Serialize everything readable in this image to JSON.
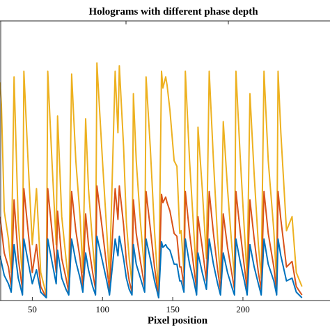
{
  "chart_data": {
    "type": "line",
    "title": "Holograms with different phase depth",
    "xlabel": "Pixel position",
    "ylabel": "",
    "xlim": [
      27,
      262
    ],
    "ylim": [
      0,
      1
    ],
    "x_ticks": [
      "50",
      "100",
      "150",
      "200"
    ],
    "grid": false,
    "legend": "none",
    "series": [
      {
        "color": "#EDB120",
        "points": [
          [
            27,
            0.78
          ],
          [
            28,
            0.7
          ],
          [
            30,
            0.32
          ],
          [
            33,
            0.22
          ],
          [
            35,
            0.1
          ],
          [
            37,
            0.8
          ],
          [
            40,
            0.28
          ],
          [
            43,
            0.08
          ],
          [
            44,
            0.82
          ],
          [
            47,
            0.5
          ],
          [
            50,
            0.2
          ],
          [
            53,
            0.4
          ],
          [
            56,
            0.1
          ],
          [
            60,
            0.02
          ],
          [
            61,
            0.82
          ],
          [
            64,
            0.5
          ],
          [
            67,
            0.2
          ],
          [
            68,
            0.66
          ],
          [
            71,
            0.3
          ],
          [
            74,
            0.15
          ],
          [
            76,
            0.06
          ],
          [
            78,
            0.81
          ],
          [
            81,
            0.5
          ],
          [
            84,
            0.3
          ],
          [
            86,
            0.1
          ],
          [
            88,
            0.65
          ],
          [
            90,
            0.4
          ],
          [
            93,
            0.2
          ],
          [
            95,
            0.08
          ],
          [
            96,
            0.85
          ],
          [
            100,
            0.5
          ],
          [
            103,
            0.25
          ],
          [
            105,
            0.08
          ],
          [
            109,
            0.82
          ],
          [
            111,
            0.6
          ],
          [
            112,
            0.84
          ],
          [
            115,
            0.55
          ],
          [
            117,
            0.28
          ],
          [
            119,
            0.15
          ],
          [
            121,
            0.06
          ],
          [
            122,
            0.74
          ],
          [
            124,
            0.5
          ],
          [
            127,
            0.28
          ],
          [
            130,
            0.1
          ],
          [
            131,
            0.8
          ],
          [
            134,
            0.55
          ],
          [
            137,
            0.25
          ],
          [
            140,
            0.02
          ],
          [
            142,
            0.82
          ],
          [
            143,
            0.76
          ],
          [
            145,
            0.8
          ],
          [
            146,
            0.77
          ],
          [
            148,
            0.68
          ],
          [
            151,
            0.5
          ],
          [
            153,
            0.48
          ],
          [
            155,
            0.24
          ],
          [
            156,
            0.25
          ],
          [
            158,
            0.1
          ],
          [
            159,
            0.82
          ],
          [
            162,
            0.5
          ],
          [
            165,
            0.25
          ],
          [
            167,
            0.08
          ],
          [
            168,
            0.62
          ],
          [
            171,
            0.4
          ],
          [
            174,
            0.15
          ],
          [
            176,
            0.82
          ],
          [
            179,
            0.5
          ],
          [
            182,
            0.22
          ],
          [
            184,
            0.08
          ],
          [
            186,
            0.64
          ],
          [
            189,
            0.4
          ],
          [
            192,
            0.2
          ],
          [
            194,
            0.08
          ],
          [
            195,
            0.82
          ],
          [
            198,
            0.52
          ],
          [
            201,
            0.25
          ],
          [
            203,
            0.08
          ],
          [
            205,
            0.74
          ],
          [
            208,
            0.45
          ],
          [
            211,
            0.2
          ],
          [
            213,
            0.08
          ],
          [
            215,
            0.82
          ],
          [
            218,
            0.5
          ],
          [
            222,
            0.25
          ],
          [
            224,
            0.06
          ],
          [
            225,
            0.82
          ],
          [
            227,
            0.6
          ],
          [
            231,
            0.25
          ],
          [
            235,
            0.3
          ],
          [
            238,
            0.1
          ],
          [
            242,
            0.05
          ]
        ]
      },
      {
        "color": "#D95319",
        "points": [
          [
            27,
            0.3
          ],
          [
            30,
            0.17
          ],
          [
            33,
            0.12
          ],
          [
            35,
            0.05
          ],
          [
            37,
            0.36
          ],
          [
            40,
            0.15
          ],
          [
            43,
            0.04
          ],
          [
            44,
            0.4
          ],
          [
            47,
            0.25
          ],
          [
            50,
            0.1
          ],
          [
            53,
            0.2
          ],
          [
            56,
            0.05
          ],
          [
            60,
            0.01
          ],
          [
            61,
            0.4
          ],
          [
            64,
            0.25
          ],
          [
            67,
            0.1
          ],
          [
            68,
            0.32
          ],
          [
            71,
            0.15
          ],
          [
            74,
            0.08
          ],
          [
            76,
            0.03
          ],
          [
            78,
            0.39
          ],
          [
            81,
            0.25
          ],
          [
            84,
            0.15
          ],
          [
            86,
            0.05
          ],
          [
            88,
            0.31
          ],
          [
            90,
            0.2
          ],
          [
            93,
            0.1
          ],
          [
            95,
            0.04
          ],
          [
            96,
            0.41
          ],
          [
            100,
            0.25
          ],
          [
            103,
            0.12
          ],
          [
            105,
            0.04
          ],
          [
            109,
            0.4
          ],
          [
            111,
            0.29
          ],
          [
            112,
            0.41
          ],
          [
            115,
            0.27
          ],
          [
            117,
            0.14
          ],
          [
            119,
            0.07
          ],
          [
            121,
            0.03
          ],
          [
            122,
            0.36
          ],
          [
            124,
            0.24
          ],
          [
            127,
            0.14
          ],
          [
            130,
            0.05
          ],
          [
            131,
            0.39
          ],
          [
            134,
            0.26
          ],
          [
            137,
            0.12
          ],
          [
            140,
            0.01
          ],
          [
            142,
            0.38
          ],
          [
            143,
            0.35
          ],
          [
            145,
            0.37
          ],
          [
            146,
            0.35
          ],
          [
            148,
            0.32
          ],
          [
            151,
            0.24
          ],
          [
            153,
            0.23
          ],
          [
            155,
            0.12
          ],
          [
            156,
            0.12
          ],
          [
            158,
            0.05
          ],
          [
            159,
            0.39
          ],
          [
            162,
            0.24
          ],
          [
            165,
            0.12
          ],
          [
            167,
            0.04
          ],
          [
            168,
            0.3
          ],
          [
            171,
            0.19
          ],
          [
            174,
            0.07
          ],
          [
            176,
            0.39
          ],
          [
            179,
            0.24
          ],
          [
            182,
            0.11
          ],
          [
            184,
            0.04
          ],
          [
            186,
            0.31
          ],
          [
            189,
            0.19
          ],
          [
            192,
            0.1
          ],
          [
            194,
            0.04
          ],
          [
            195,
            0.39
          ],
          [
            198,
            0.25
          ],
          [
            201,
            0.12
          ],
          [
            203,
            0.04
          ],
          [
            205,
            0.36
          ],
          [
            208,
            0.22
          ],
          [
            211,
            0.1
          ],
          [
            213,
            0.04
          ],
          [
            215,
            0.39
          ],
          [
            218,
            0.24
          ],
          [
            222,
            0.12
          ],
          [
            224,
            0.03
          ],
          [
            225,
            0.39
          ],
          [
            227,
            0.29
          ],
          [
            231,
            0.12
          ],
          [
            235,
            0.14
          ],
          [
            238,
            0.05
          ],
          [
            242,
            0.02
          ]
        ]
      },
      {
        "color": "#0072BD",
        "points": [
          [
            27,
            0.16
          ],
          [
            30,
            0.09
          ],
          [
            33,
            0.06
          ],
          [
            35,
            0.03
          ],
          [
            37,
            0.2
          ],
          [
            40,
            0.08
          ],
          [
            43,
            0.02
          ],
          [
            44,
            0.22
          ],
          [
            47,
            0.14
          ],
          [
            50,
            0.06
          ],
          [
            53,
            0.11
          ],
          [
            56,
            0.03
          ],
          [
            60,
            0.01
          ],
          [
            61,
            0.22
          ],
          [
            64,
            0.14
          ],
          [
            67,
            0.06
          ],
          [
            68,
            0.18
          ],
          [
            71,
            0.08
          ],
          [
            74,
            0.04
          ],
          [
            76,
            0.02
          ],
          [
            78,
            0.22
          ],
          [
            81,
            0.14
          ],
          [
            84,
            0.08
          ],
          [
            86,
            0.03
          ],
          [
            88,
            0.17
          ],
          [
            90,
            0.11
          ],
          [
            93,
            0.05
          ],
          [
            95,
            0.02
          ],
          [
            96,
            0.23
          ],
          [
            100,
            0.14
          ],
          [
            103,
            0.07
          ],
          [
            105,
            0.02
          ],
          [
            109,
            0.22
          ],
          [
            111,
            0.16
          ],
          [
            112,
            0.23
          ],
          [
            115,
            0.15
          ],
          [
            117,
            0.08
          ],
          [
            119,
            0.04
          ],
          [
            121,
            0.02
          ],
          [
            122,
            0.2
          ],
          [
            124,
            0.13
          ],
          [
            127,
            0.08
          ],
          [
            130,
            0.03
          ],
          [
            131,
            0.22
          ],
          [
            134,
            0.15
          ],
          [
            137,
            0.07
          ],
          [
            140,
            0.01
          ],
          [
            142,
            0.21
          ],
          [
            143,
            0.19
          ],
          [
            145,
            0.2
          ],
          [
            146,
            0.19
          ],
          [
            148,
            0.18
          ],
          [
            151,
            0.13
          ],
          [
            153,
            0.13
          ],
          [
            155,
            0.07
          ],
          [
            156,
            0.07
          ],
          [
            158,
            0.03
          ],
          [
            159,
            0.22
          ],
          [
            162,
            0.13
          ],
          [
            165,
            0.07
          ],
          [
            167,
            0.02
          ],
          [
            168,
            0.17
          ],
          [
            171,
            0.1
          ],
          [
            174,
            0.04
          ],
          [
            176,
            0.22
          ],
          [
            179,
            0.13
          ],
          [
            182,
            0.06
          ],
          [
            184,
            0.02
          ],
          [
            186,
            0.17
          ],
          [
            189,
            0.1
          ],
          [
            192,
            0.05
          ],
          [
            194,
            0.02
          ],
          [
            195,
            0.22
          ],
          [
            198,
            0.14
          ],
          [
            201,
            0.07
          ],
          [
            203,
            0.02
          ],
          [
            205,
            0.2
          ],
          [
            208,
            0.12
          ],
          [
            211,
            0.06
          ],
          [
            213,
            0.02
          ],
          [
            215,
            0.22
          ],
          [
            218,
            0.13
          ],
          [
            222,
            0.07
          ],
          [
            224,
            0.02
          ],
          [
            225,
            0.22
          ],
          [
            227,
            0.16
          ],
          [
            231,
            0.07
          ],
          [
            235,
            0.08
          ],
          [
            238,
            0.03
          ],
          [
            242,
            0.01
          ]
        ]
      }
    ]
  }
}
